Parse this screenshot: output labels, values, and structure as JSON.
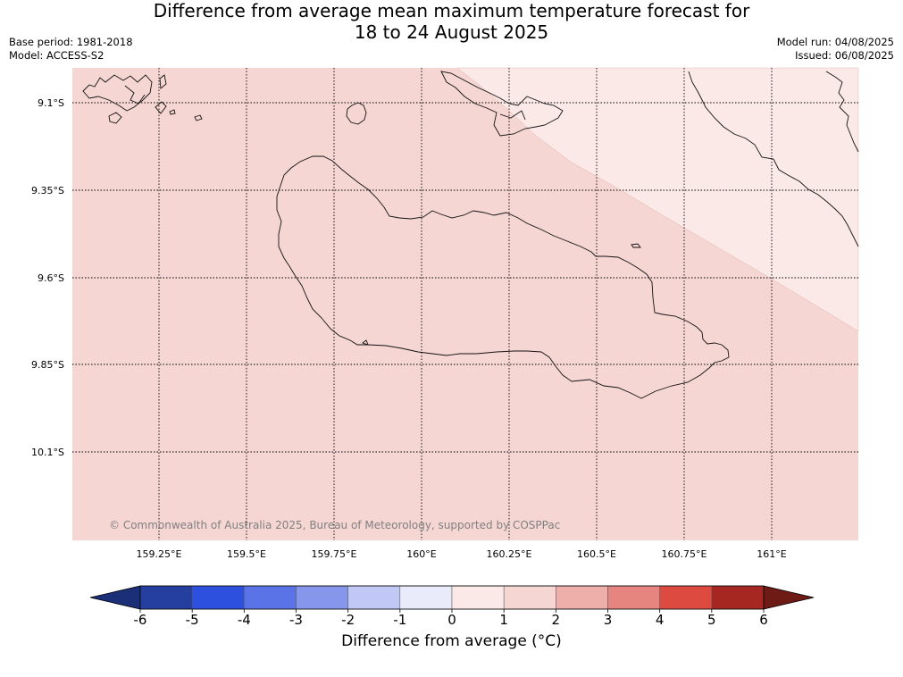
{
  "title": {
    "line1": "Difference from average mean maximum temperature forecast for",
    "line2": "18 to 24 August 2025"
  },
  "meta": {
    "base_period": "Base period: 1981-2018",
    "model": "Model: ACCESS-S2",
    "model_run": "Model run: 04/08/2025",
    "issued": "Issued: 06/08/2025"
  },
  "map": {
    "lon_labels": [
      "159.25°E",
      "159.5°E",
      "159.75°E",
      "160°E",
      "160.25°E",
      "160.5°E",
      "160.75°E",
      "161°E"
    ],
    "lat_labels": [
      "9.1°S",
      "9.35°S",
      "9.6°S",
      "9.85°S",
      "10.1°S"
    ],
    "copyright": "© Commonwealth of Australia 2025, Bureau of Meteorology, supported by COSPPac",
    "fill_zones": [
      {
        "range": "1 to 2",
        "color": "#f5d6d3"
      },
      {
        "range": "0 to 1",
        "color": "#fbe9e8"
      }
    ]
  },
  "colorbar": {
    "tick_labels": [
      "-6",
      "-5",
      "-4",
      "-3",
      "-2",
      "-1",
      "0",
      "1",
      "2",
      "3",
      "4",
      "5",
      "6"
    ],
    "colors": [
      "#253f9f",
      "#2e50df",
      "#5a73e6",
      "#8696eb",
      "#c1c8f6",
      "#e9ebfb",
      "#fbe9e8",
      "#f5d6d3",
      "#eeafab",
      "#e6857f",
      "#dd4b40",
      "#a62722"
    ],
    "under_color": "#1a2f78",
    "over_color": "#6e1a15",
    "label": "Difference from average (°C)"
  }
}
